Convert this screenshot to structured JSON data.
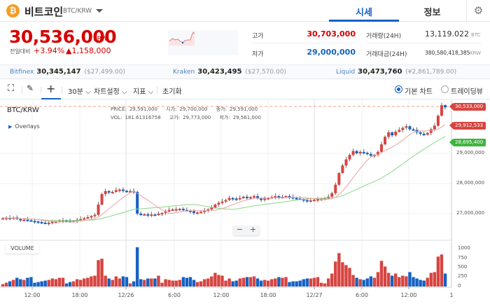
{
  "header": {
    "coin_icon": "bitcoin-icon",
    "coin_icon_glyph": "₿",
    "coin_name": "비트코인",
    "pair": "BTC/KRW",
    "tabs": [
      {
        "label": "시세",
        "active": true
      },
      {
        "label": "정보",
        "active": false
      }
    ],
    "settings_icon": "⚙"
  },
  "ticker": {
    "price": "30,536,000",
    "unit": "KRW",
    "change_label": "전일대비",
    "change_pct": "+3.94%",
    "change_amount": "▲1,158,000",
    "high_label": "고가",
    "high": "30,703,000",
    "low_label": "저가",
    "low": "29,000,000",
    "volume_label": "거래량(24H)",
    "volume": "13,119.022",
    "volume_unit": "BTC",
    "value_label": "거래대금(24H)",
    "value": "380,580,418,385",
    "value_unit": "KRW"
  },
  "exchanges": [
    {
      "name": "Bitfinex",
      "price": "30,345,147",
      "alt": "($27,499.00)"
    },
    {
      "name": "Kraken",
      "price": "30,423,495",
      "alt": "($27,570.00)"
    },
    {
      "name": "Liquid",
      "price": "30,473,760",
      "alt": "(¥2,861,789.00)"
    }
  ],
  "toolbar": {
    "fullscreen_icon": "⛶",
    "draw_icon": "✎",
    "crosshair_icon": "+",
    "interval": "30분 ⌵",
    "chart_settings": "차트설정 ⌵",
    "indicators": "지표 ⌵",
    "reset": "초기화",
    "view_basic": "기본 차트",
    "view_tradingview": "트레이딩뷰"
  },
  "chart_legend": {
    "pair": "BTC/KRW",
    "price_label": "PRICE:",
    "price": "29,591,000",
    "open_label": "시가:",
    "open": "29,700,000",
    "close_label": "종가:",
    "close": "29,591,000",
    "vol_label": "VOL:",
    "vol": "181.61316758",
    "high_label": "고가:",
    "high": "29,773,000",
    "low_label": "저가:",
    "low": "29,561,000",
    "overlays": "Overlays",
    "volume_panel": "VOLUME",
    "zoom_out": "−",
    "zoom_in": "+"
  },
  "chart_data": {
    "type": "candlestick",
    "interval": "30m",
    "y_axis": {
      "ticks": [
        "29,000,000",
        "28,000,000",
        "27,000,000"
      ],
      "range": [
        26300000,
        30700000
      ]
    },
    "volume_axis": {
      "ticks": [
        "1000",
        "750",
        "500",
        "250",
        "0"
      ],
      "range": [
        0,
        1000
      ]
    },
    "x_ticks": [
      "12:00",
      "18:00",
      "12/26",
      "6:00",
      "12:00",
      "18:00",
      "12/27",
      "6:00",
      "12:00",
      "1"
    ],
    "price_tags": [
      {
        "label": "30,533,000",
        "color": "#d64541",
        "kind": "last"
      },
      {
        "label": "29,912,533",
        "color": "#d64541",
        "kind": "ma-short"
      },
      {
        "label": "28,695,400",
        "color": "#3fb43f",
        "kind": "ma-long"
      }
    ],
    "colors": {
      "up": "#d64541",
      "down": "#1561c4",
      "ma_short": "#f0a0a0",
      "ma_long": "#88d888"
    }
  }
}
